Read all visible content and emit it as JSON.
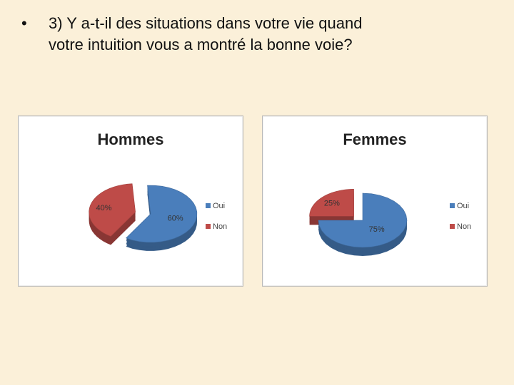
{
  "slide": {
    "bullet": "•",
    "question_line1": "3) Y a-t-il des situations dans votre vie quand",
    "question_line2": "votre intuition vous a montré la bonne voie?"
  },
  "chart_data": [
    {
      "type": "pie",
      "title": "Hommes",
      "categories": [
        "Oui",
        "Non"
      ],
      "values": [
        60,
        40
      ],
      "data_labels": [
        "60%",
        "40%"
      ],
      "colors": [
        "#4a7ebb",
        "#be4b48"
      ],
      "exploded": "Non",
      "legend": "right"
    },
    {
      "type": "pie",
      "title": "Femmes",
      "categories": [
        "Oui",
        "Non"
      ],
      "values": [
        75,
        25
      ],
      "data_labels": [
        "75%",
        "25%"
      ],
      "colors": [
        "#4a7ebb",
        "#be4b48"
      ],
      "exploded": "Non",
      "legend": "right"
    }
  ]
}
